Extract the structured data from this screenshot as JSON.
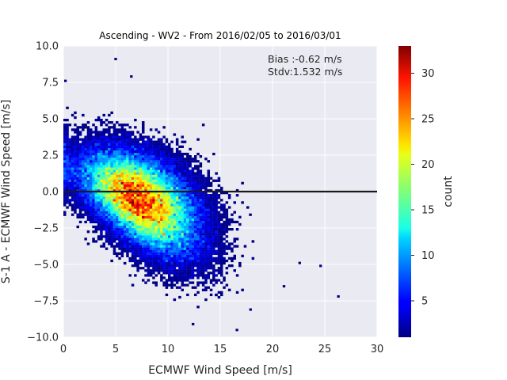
{
  "chart_data": {
    "type": "heatmap",
    "title": "Ascending - WV2 - From 2016/02/05 to 2016/03/01",
    "xlabel": "ECMWF Wind Speed [m/s]",
    "ylabel": "S-1 A - ECMWF Wind Speed [m/s]",
    "xlim": [
      0,
      30
    ],
    "ylim": [
      -10,
      10
    ],
    "xticks": [
      "0",
      "5",
      "10",
      "15",
      "20",
      "25",
      "30"
    ],
    "yticks": [
      "10.0",
      "7.5",
      "5.0",
      "2.5",
      "0.0",
      "−2.5",
      "−5.0",
      "−7.5",
      "−10.0"
    ],
    "grid": true,
    "reference_line_y": 0,
    "annotations": [
      "Bias :-0.62 m/s",
      "Stdv:1.532 m/s"
    ],
    "colorbar": {
      "label": "count",
      "range": [
        1,
        33
      ],
      "ticks": [
        "5",
        "10",
        "15",
        "20",
        "25",
        "30"
      ],
      "colormap": "jet"
    },
    "density_peak": {
      "x": 8,
      "y": -1,
      "count": 33
    },
    "outliers": [
      {
        "x": 5.0,
        "y": 9.1
      },
      {
        "x": 6.5,
        "y": 7.9
      },
      {
        "x": 0.2,
        "y": 7.6
      },
      {
        "x": 26.3,
        "y": -7.2
      },
      {
        "x": 24.6,
        "y": -5.1
      },
      {
        "x": 22.6,
        "y": -4.9
      },
      {
        "x": 12.4,
        "y": -9.1
      },
      {
        "x": 16.6,
        "y": -9.5
      },
      {
        "x": 17.9,
        "y": -8.1
      },
      {
        "x": 21.1,
        "y": -6.5
      },
      {
        "x": 14.6,
        "y": -7.1
      }
    ]
  }
}
